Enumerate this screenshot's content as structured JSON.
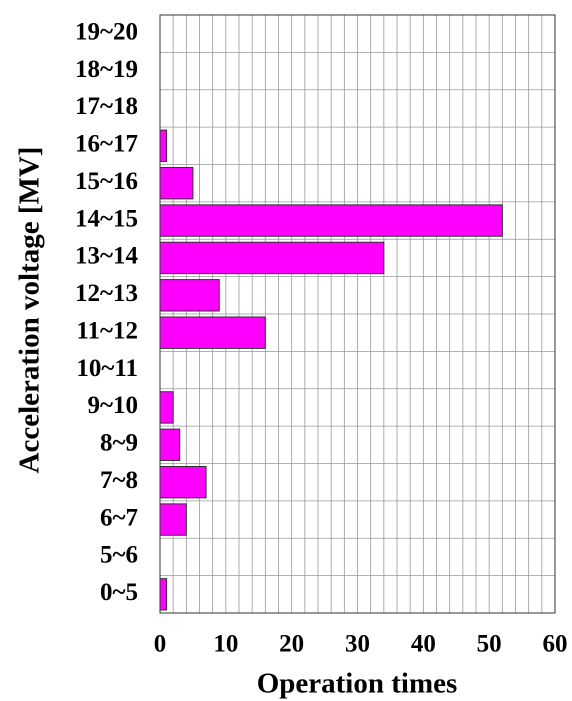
{
  "chart_data": {
    "type": "bar",
    "orientation": "horizontal",
    "xlabel": "Operation times",
    "ylabel": "Acceleration voltage  [MV]",
    "categories": [
      "19~20",
      "18~19",
      "17~18",
      "16~17",
      "15~16",
      "14~15",
      "13~14",
      "12~13",
      "11~12",
      "10~11",
      "9~10",
      "8~9",
      "7~8",
      "6~7",
      "5~6",
      "0~5"
    ],
    "values": [
      0,
      0,
      0,
      1,
      5,
      52,
      34,
      9,
      16,
      0,
      2,
      3,
      7,
      4,
      0,
      1
    ],
    "color": "#ff00ff",
    "xlim": [
      0,
      60
    ],
    "xticks": [
      0,
      10,
      20,
      30,
      40,
      50,
      60
    ],
    "x_minor_ticks": [
      0,
      2,
      4,
      6,
      8,
      10,
      12,
      14,
      16,
      18,
      20,
      22,
      24,
      26,
      28,
      30,
      32,
      34,
      36,
      38,
      40,
      42,
      44,
      46,
      48,
      50,
      52,
      54,
      56,
      58,
      60
    ],
    "grid": true
  }
}
